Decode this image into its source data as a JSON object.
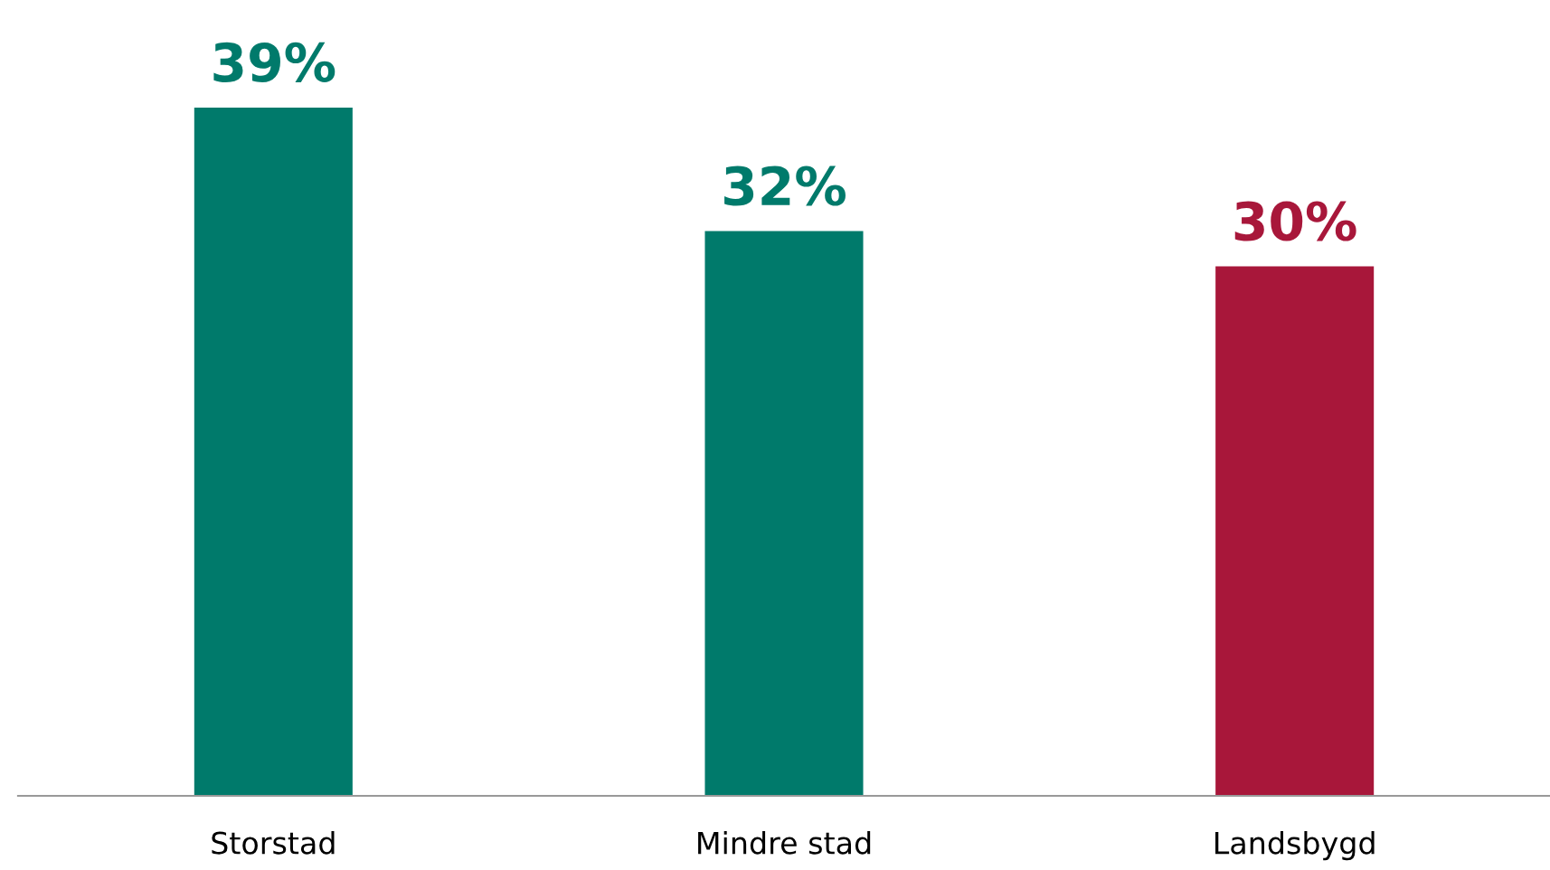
{
  "chart_data": {
    "type": "bar",
    "categories": [
      "Storstad",
      "Mindre stad",
      "Landsbygd"
    ],
    "values": [
      39,
      32,
      30
    ],
    "colors": [
      "#007a6b",
      "#007a6b",
      "#a8173a"
    ],
    "value_labels": [
      "39%",
      "32%",
      "30%"
    ]
  }
}
